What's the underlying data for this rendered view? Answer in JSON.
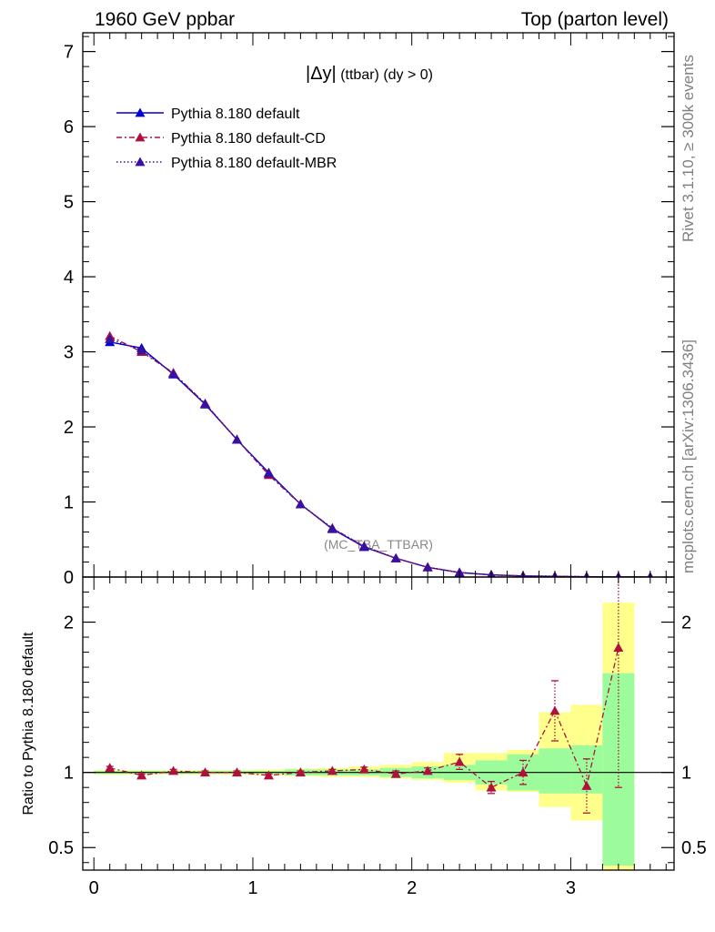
{
  "header": {
    "left": "1960 GeV ppbar",
    "right": "Top (parton level)"
  },
  "side_labels": {
    "right_top": "Rivet 3.1.10, ≥ 300k events",
    "right_bottom": "mcplots.cern.ch [arXiv:1306.3436]"
  },
  "chart_data": [
    {
      "type": "line",
      "title_symbol": "|Δy|",
      "title_rest": " (ttbar) (dy > 0)",
      "watermark": "(MC_TBA_TTBAR)",
      "ylim": [
        0,
        7.25
      ],
      "xlim": [
        -0.07,
        3.65
      ],
      "yticks": [
        0,
        1,
        2,
        3,
        4,
        5,
        6,
        7
      ],
      "x": [
        0.1,
        0.3,
        0.5,
        0.7,
        0.9,
        1.1,
        1.3,
        1.5,
        1.7,
        1.9,
        2.1,
        2.3,
        2.5,
        2.7,
        2.9,
        3.1,
        3.3,
        3.5
      ],
      "series": [
        {
          "name": "Pythia 8.180 default",
          "color": "#0000cc",
          "style": "solid",
          "values": [
            3.13,
            3.05,
            2.7,
            2.3,
            1.83,
            1.39,
            0.97,
            0.64,
            0.4,
            0.25,
            0.13,
            0.06,
            0.03,
            0.015,
            0.008,
            0.004,
            0.002,
            0.001
          ]
        },
        {
          "name": "Pythia 8.180 default-CD",
          "color": "#b0103c",
          "style": "dashdot",
          "values": [
            3.21,
            3.0,
            2.72,
            2.31,
            1.83,
            1.36,
            0.97,
            0.65,
            0.41,
            0.25,
            0.13,
            0.06,
            0.027,
            0.015,
            0.011,
            0.004,
            0.004,
            0.001
          ]
        },
        {
          "name": "Pythia 8.180 default-MBR",
          "color": "#3a10a0",
          "style": "dotted",
          "values": [
            3.17,
            3.02,
            2.71,
            2.31,
            1.83,
            1.38,
            0.97,
            0.65,
            0.41,
            0.25,
            0.13,
            0.06,
            0.028,
            0.015,
            0.01,
            0.004,
            0.003,
            0.001
          ]
        }
      ]
    },
    {
      "type": "line",
      "ylabel": "Ratio to Pythia 8.180 default",
      "xlim": [
        -0.07,
        3.65
      ],
      "ylim": [
        0.35,
        2.3
      ],
      "yticks": [
        0.5,
        1,
        2
      ],
      "yticklabels": [
        "0.5",
        "1",
        "2"
      ],
      "xticks": [
        0,
        1,
        2,
        3
      ],
      "reference": 1,
      "bands": {
        "bin_edges": [
          0,
          0.2,
          0.4,
          0.6,
          0.8,
          1.0,
          1.2,
          1.4,
          1.6,
          1.8,
          2.0,
          2.2,
          2.4,
          2.6,
          2.8,
          3.0,
          3.2,
          3.4
        ],
        "green_low": [
          0.99,
          0.99,
          0.99,
          0.99,
          0.99,
          0.99,
          0.98,
          0.98,
          0.98,
          0.97,
          0.96,
          0.95,
          0.92,
          0.88,
          0.86,
          0.86,
          0.38
        ],
        "green_high": [
          1.01,
          1.01,
          1.01,
          1.01,
          1.01,
          1.01,
          1.02,
          1.02,
          1.02,
          1.03,
          1.04,
          1.05,
          1.08,
          1.12,
          1.16,
          1.18,
          1.66
        ],
        "yellow_low": [
          0.985,
          0.985,
          0.985,
          0.985,
          0.985,
          0.98,
          0.975,
          0.97,
          0.97,
          0.96,
          0.95,
          0.93,
          0.88,
          0.87,
          0.77,
          0.68,
          0.33
        ],
        "yellow_high": [
          1.015,
          1.015,
          1.015,
          1.015,
          1.015,
          1.02,
          1.025,
          1.03,
          1.04,
          1.05,
          1.07,
          1.13,
          1.13,
          1.15,
          1.4,
          1.45,
          2.13
        ]
      },
      "ratio_series": {
        "name": "Pythia 8.180 default-CD",
        "values": [
          1.03,
          0.98,
          1.01,
          1.0,
          1.0,
          0.98,
          1.0,
          1.01,
          1.02,
          0.99,
          1.01,
          1.07,
          0.9,
          1.0,
          1.41,
          0.91,
          1.83,
          null
        ],
        "err": [
          0.01,
          0.01,
          0.01,
          0.01,
          0.01,
          0.01,
          0.01,
          0.01,
          0.015,
          0.02,
          0.02,
          0.05,
          0.04,
          0.08,
          0.2,
          0.18,
          0.93,
          null
        ]
      }
    }
  ]
}
